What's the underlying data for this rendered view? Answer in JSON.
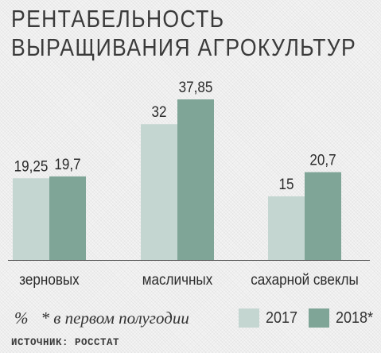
{
  "title_lines": [
    "РЕНТАБЕЛЬНОСТЬ",
    "ВЫРАЩИВАНИЯ АГРОКУЛЬТУР"
  ],
  "unit": "%",
  "note": "* в первом полугодии",
  "source": "ИСТОЧНИК: РОССТАТ",
  "colors": {
    "y2017": "#c4d6d1",
    "y2018": "#7fa597",
    "baseline": "#555555"
  },
  "chart_data": {
    "type": "bar",
    "categories": [
      "зерновых",
      "масличных",
      "сахарной свеклы"
    ],
    "series": [
      {
        "name": "2017",
        "values": [
          19.25,
          32,
          15
        ],
        "labels": [
          "19,25",
          "32",
          "15"
        ]
      },
      {
        "name": "2018*",
        "values": [
          19.7,
          37.85,
          20.7
        ],
        "labels": [
          "19,7",
          "37,85",
          "20,7"
        ]
      }
    ],
    "ylim": [
      0,
      37.85
    ],
    "grid": false,
    "legend": "bottom-right"
  }
}
